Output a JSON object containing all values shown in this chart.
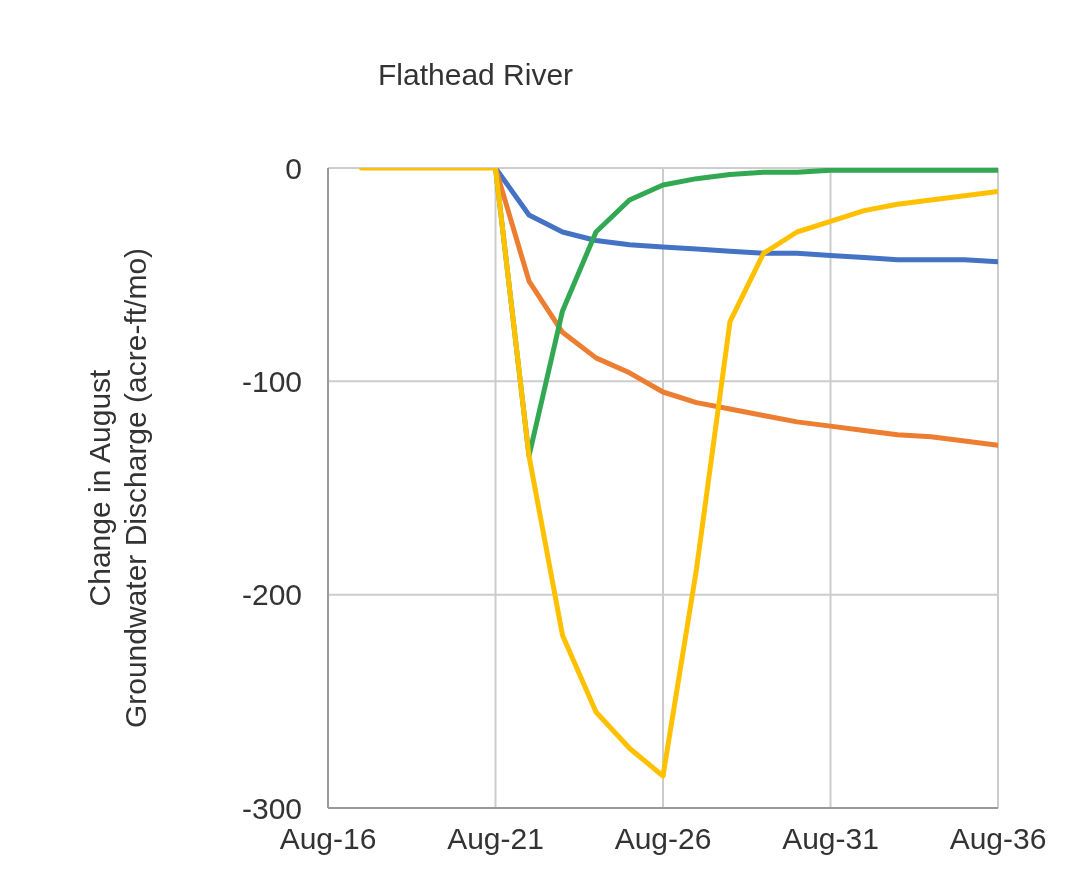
{
  "chart_data": {
    "type": "line",
    "title": "Flathead River",
    "ylabel": "Change in August\nGroundwater Discharge (acre-ft/mo)",
    "x": [
      "2017-08",
      "2018-08",
      "2019-08",
      "2020-08",
      "2021-08",
      "2022-08",
      "2023-08",
      "2024-08",
      "2025-08",
      "2026-08",
      "2027-08",
      "2028-08",
      "2029-08",
      "2030-08",
      "2031-08",
      "2032-08",
      "2033-08",
      "2034-08",
      "2035-08",
      "2036-08"
    ],
    "series": [
      {
        "color": "#4472c4",
        "values": [
          null,
          null,
          null,
          null,
          0,
          -22,
          -30,
          -34,
          -36,
          -37,
          -38,
          -39,
          -40,
          -40,
          -41,
          -42,
          -43,
          -43,
          -43,
          -44
        ]
      },
      {
        "color": "#ed7d31",
        "values": [
          null,
          null,
          null,
          null,
          0,
          -53,
          -77,
          -89,
          -96,
          -105,
          -110,
          -113,
          -116,
          -119,
          -121,
          -123,
          -125,
          -126,
          -128,
          -130
        ]
      },
      {
        "color": "#33a852",
        "values": [
          null,
          null,
          null,
          null,
          0,
          -135,
          -67,
          -30,
          -15,
          -8,
          -5,
          -3,
          -2,
          -2,
          -1,
          -1,
          -1,
          -1,
          -1,
          -1
        ]
      },
      {
        "color": "#ffc000",
        "values": [
          0,
          0,
          0,
          0,
          0,
          -135,
          -219,
          -255,
          -272,
          -285,
          -188,
          -72,
          -40,
          -30,
          -25,
          -20,
          -17,
          -15,
          -13,
          -11
        ]
      }
    ],
    "xlim": [
      "2016-08",
      "2036-08"
    ],
    "xticks": [
      {
        "value": "2016-08",
        "label": "Aug-16"
      },
      {
        "value": "2021-08",
        "label": "Aug-21"
      },
      {
        "value": "2026-08",
        "label": "Aug-26"
      },
      {
        "value": "2031-08",
        "label": "Aug-31"
      },
      {
        "value": "2036-08",
        "label": "Aug-36"
      }
    ],
    "ylim": [
      -300,
      0
    ],
    "yticks": [
      -300,
      -200,
      -100,
      0
    ],
    "grid": true,
    "marker": "none",
    "line_style": "solid"
  }
}
